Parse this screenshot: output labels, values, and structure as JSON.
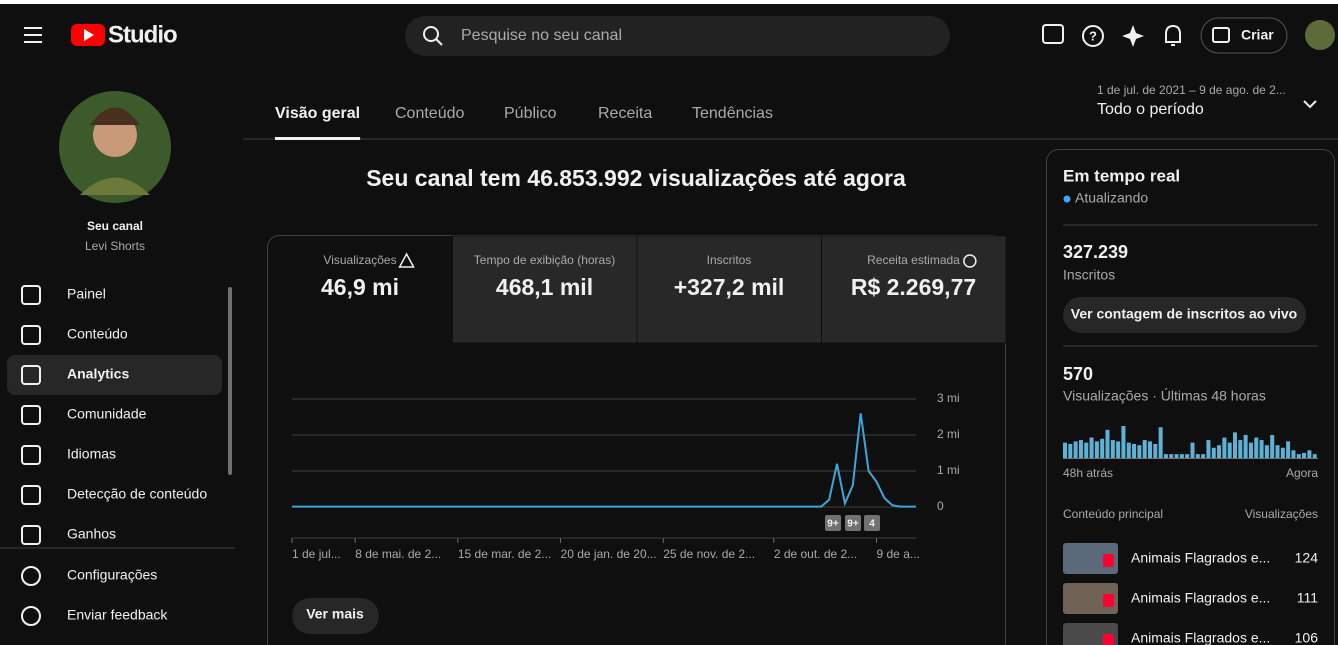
{
  "header": {
    "logo": "Studio",
    "search_placeholder": "Pesquise no seu canal",
    "create": "Criar"
  },
  "sidebar": {
    "channel_label": "Seu canal",
    "channel_name": "Levi Shorts",
    "nav": [
      "Painel",
      "Conteúdo",
      "Analytics",
      "Comunidade",
      "Idiomas",
      "Detecção de conteúdo",
      "Ganhos"
    ],
    "footer": [
      "Configurações",
      "Enviar feedback"
    ]
  },
  "tabs": [
    "Visão geral",
    "Conteúdo",
    "Público",
    "Receita",
    "Tendências"
  ],
  "date_range": {
    "range": "1 de jul. de 2021 – 9 de ago. de 2...",
    "period": "Todo o período"
  },
  "headline": "Seu canal tem 46.853.992 visualizações até agora",
  "metrics": [
    {
      "label": "Visualizações",
      "value": "46,9 mi"
    },
    {
      "label": "Tempo de exibição (horas)",
      "value": "468,1 mil"
    },
    {
      "label": "Inscritos",
      "value": "+327,2 mil"
    },
    {
      "label": "Receita estimada",
      "value": "R$ 2.269,77"
    }
  ],
  "chart_data": [
    {
      "type": "line",
      "color": "#3ea6d6",
      "categories": [
        "1 de jul...",
        null,
        null,
        null,
        null,
        null,
        null,
        null,
        "8 de mai. de 2...",
        null,
        null,
        null,
        null,
        null,
        null,
        null,
        null,
        null,
        null,
        null,
        null,
        "15 de mar. de 2...",
        null,
        null,
        null,
        null,
        null,
        null,
        null,
        null,
        null,
        null,
        null,
        null,
        "20 de jan. de 20...",
        null,
        null,
        null,
        null,
        null,
        null,
        null,
        null,
        null,
        null,
        null,
        null,
        "25 de nov. de 2...",
        null,
        null,
        null,
        null,
        null,
        null,
        null,
        null,
        null,
        null,
        null,
        null,
        null,
        "2 de out. de 2...",
        null,
        null,
        null,
        null,
        null,
        null,
        null,
        null,
        null,
        null,
        null,
        null,
        "9 de a...",
        null,
        null,
        null,
        null,
        null
      ],
      "values": [
        10000,
        10000,
        10000,
        10000,
        10000,
        10000,
        10000,
        10000,
        10000,
        10000,
        10000,
        10000,
        10000,
        10000,
        10000,
        10000,
        10000,
        10000,
        10000,
        10000,
        10000,
        10000,
        10000,
        10000,
        10000,
        10000,
        10000,
        10000,
        10000,
        10000,
        10000,
        10000,
        10000,
        10000,
        10000,
        10000,
        10000,
        10000,
        10000,
        10000,
        10000,
        10000,
        10000,
        10000,
        10000,
        10000,
        10000,
        10000,
        10000,
        10000,
        10000,
        10000,
        10000,
        10000,
        10000,
        10000,
        10000,
        10000,
        10000,
        10000,
        10000,
        10000,
        10000,
        10000,
        10000,
        10000,
        10000,
        10000,
        200000,
        1200000,
        100000,
        600000,
        2600000,
        1000000,
        700000,
        250000,
        50000,
        10000,
        10000,
        10000
      ],
      "ylim": [
        0,
        3000000
      ],
      "yticks": [
        0,
        {
          "value": 1000000,
          "label": "1 mi"
        },
        {
          "value": 2000000,
          "label": "2 mi"
        },
        {
          "value": 3000000,
          "label": "3 mi"
        }
      ],
      "grid": true,
      "annotations": [
        "9+",
        "9+",
        "4"
      ]
    },
    {
      "type": "bar",
      "color": "#5fb2d6",
      "values": [
        12,
        11,
        13,
        14,
        12,
        16,
        13,
        15,
        22,
        14,
        13,
        25,
        12,
        11,
        10,
        14,
        13,
        11,
        24,
        3,
        3,
        3,
        3,
        3,
        12,
        3,
        3,
        14,
        8,
        10,
        16,
        12,
        20,
        14,
        18,
        12,
        16,
        14,
        10,
        18,
        10,
        8,
        13,
        6,
        3,
        4,
        6,
        3
      ]
    }
  ],
  "see_more": "Ver mais",
  "realtime": {
    "title": "Em tempo real",
    "status": "Atualizando",
    "subscribers": "327.239",
    "subscribers_label": "Inscritos",
    "live_button": "Ver contagem de inscritos ao vivo",
    "views": "570",
    "views_label": "Visualizações · Últimas 48 horas",
    "start_label": "48h atrás",
    "end_label": "Agora",
    "top_content": "Conteúdo principal",
    "top_views": "Visualizações",
    "rows": [
      {
        "title": "Animais Flagrados e...",
        "views": "124"
      },
      {
        "title": "Animais Flagrados e...",
        "views": "111"
      },
      {
        "title": "Animais Flagrados e...",
        "views": "106"
      }
    ]
  }
}
